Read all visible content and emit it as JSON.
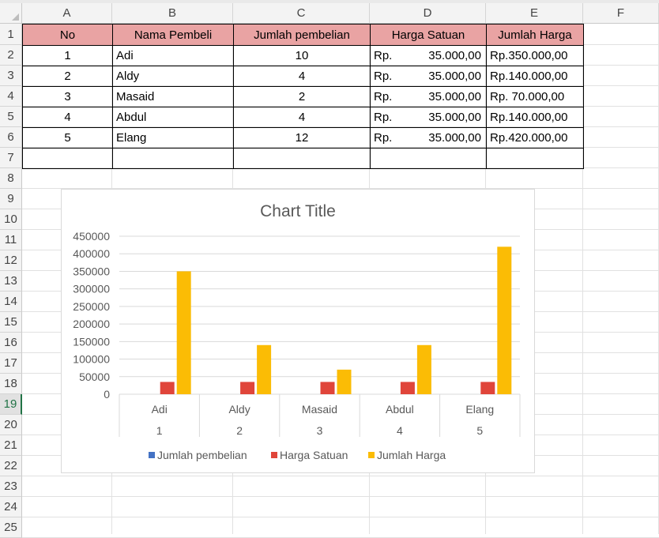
{
  "columns": [
    "A",
    "B",
    "C",
    "D",
    "E",
    "F"
  ],
  "rows": [
    "1",
    "2",
    "3",
    "4",
    "5",
    "6",
    "7",
    "8",
    "9",
    "10",
    "11",
    "12",
    "13",
    "14",
    "15",
    "16",
    "17",
    "18",
    "19",
    "20",
    "21",
    "22",
    "23",
    "24",
    "25"
  ],
  "selected_row": "19",
  "table": {
    "headers": [
      "No",
      "Nama Pembeli",
      "Jumlah pembelian",
      "Harga Satuan",
      "Jumlah Harga"
    ],
    "rows": [
      {
        "no": "1",
        "nama": "Adi",
        "jumlah": "10",
        "rp": "Rp.",
        "harga": "35.000,00",
        "total": "Rp.350.000,00"
      },
      {
        "no": "2",
        "nama": "Aldy",
        "jumlah": "4",
        "rp": "Rp.",
        "harga": "35.000,00",
        "total": "Rp.140.000,00"
      },
      {
        "no": "3",
        "nama": "Masaid",
        "jumlah": "2",
        "rp": "Rp.",
        "harga": "35.000,00",
        "total": "Rp.  70.000,00"
      },
      {
        "no": "4",
        "nama": "Abdul",
        "jumlah": "4",
        "rp": "Rp.",
        "harga": "35.000,00",
        "total": "Rp.140.000,00"
      },
      {
        "no": "5",
        "nama": "Elang",
        "jumlah": "12",
        "rp": "Rp.",
        "harga": "35.000,00",
        "total": "Rp.420.000,00"
      }
    ]
  },
  "colors": {
    "header_fill": "#e9a3a3",
    "series_1": "#4472c4",
    "series_2": "#e0453a",
    "series_3": "#fbbc05",
    "selected_row": "#217346"
  },
  "chart_data": {
    "type": "bar",
    "title": "Chart Title",
    "categories": [
      "Adi",
      "Aldy",
      "Masaid",
      "Abdul",
      "Elang"
    ],
    "categories_level2": [
      "1",
      "2",
      "3",
      "4",
      "5"
    ],
    "series": [
      {
        "name": "Jumlah pembelian",
        "values": [
          10,
          4,
          2,
          4,
          12
        ]
      },
      {
        "name": "Harga Satuan",
        "values": [
          35000,
          35000,
          35000,
          35000,
          35000
        ]
      },
      {
        "name": "Jumlah Harga",
        "values": [
          350000,
          140000,
          70000,
          140000,
          420000
        ]
      }
    ],
    "ylim": [
      0,
      450000
    ],
    "yticks": [
      0,
      50000,
      100000,
      150000,
      200000,
      250000,
      300000,
      350000,
      400000,
      450000
    ],
    "ytick_labels": [
      "0",
      "50000",
      "100000",
      "150000",
      "200000",
      "250000",
      "300000",
      "350000",
      "400000",
      "450000"
    ],
    "grid": true,
    "legend_position": "bottom"
  }
}
